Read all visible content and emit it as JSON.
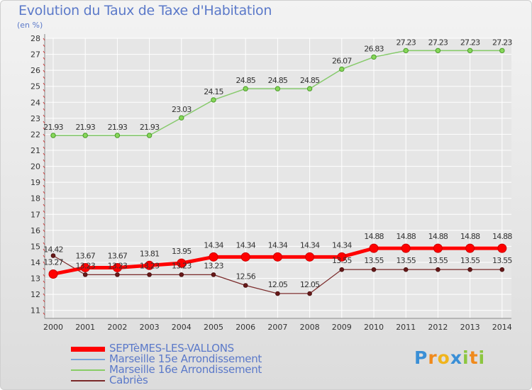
{
  "colors": {
    "title": "#5b79c9",
    "axis": "#888888",
    "grid": "#ffffff",
    "label": "#333333"
  },
  "chart_data": {
    "type": "line",
    "title": "Evolution du Taux de Taxe d'Habitation",
    "subtitle": "(en %)",
    "x": [
      "2000",
      "2001",
      "2002",
      "2003",
      "2004",
      "2005",
      "2006",
      "2007",
      "2008",
      "2009",
      "2010",
      "2011",
      "2012",
      "2013",
      "2014"
    ],
    "ylim": [
      10.5,
      28
    ],
    "yticks": [
      11,
      12,
      13,
      14,
      15,
      16,
      17,
      18,
      19,
      20,
      21,
      22,
      23,
      24,
      25,
      26,
      27,
      28
    ],
    "grid": true,
    "legend_position": "bottom-left",
    "series": [
      {
        "name": "SEPTèMES-LES-VALLONS",
        "color": "#ff0000",
        "values": [
          13.27,
          13.67,
          13.67,
          13.81,
          13.95,
          14.34,
          14.34,
          14.34,
          14.34,
          14.34,
          14.88,
          14.88,
          14.88,
          14.88,
          14.88
        ],
        "labels": [
          "13.27",
          "13.67",
          "13.67",
          "13.81",
          "13.95",
          "14.34",
          "14.34",
          "14.34",
          "14.34",
          "14.34",
          "14.88",
          "14.88",
          "14.88",
          "14.88",
          "14.88"
        ]
      },
      {
        "name": "Marseille 15e  Arrondissement",
        "color": "#7aa6d8",
        "values": [
          21.93,
          21.93,
          21.93,
          21.93,
          23.03,
          24.15,
          24.85,
          24.85,
          24.85,
          26.07,
          26.83,
          27.23,
          27.23,
          27.23,
          27.23
        ],
        "labels": null
      },
      {
        "name": "Marseille 16e  Arrondissement",
        "color": "#88cc66",
        "values": [
          21.93,
          21.93,
          21.93,
          21.93,
          23.03,
          24.15,
          24.85,
          24.85,
          24.85,
          26.07,
          26.83,
          27.23,
          27.23,
          27.23,
          27.23
        ],
        "labels": [
          "21.93",
          "21.93",
          "21.93",
          "21.93",
          "23.03",
          "24.15",
          "24.85",
          "24.85",
          "24.85",
          "26.07",
          "26.83",
          "27.23",
          "27.23",
          "27.23",
          "27.23"
        ]
      },
      {
        "name": "Cabriès",
        "color": "#7a2a2a",
        "values": [
          14.42,
          13.23,
          13.23,
          13.23,
          13.23,
          13.23,
          12.56,
          12.05,
          12.05,
          13.55,
          13.55,
          13.55,
          13.55,
          13.55,
          13.55
        ],
        "labels": [
          "14.42",
          "13.23",
          "13.23",
          "13.23",
          "13.23",
          "13.23",
          "12.56",
          "12.05",
          "12.05",
          "13.55",
          "13.55",
          "13.55",
          "13.55",
          "13.55",
          "13.55"
        ]
      }
    ]
  },
  "logo": {
    "text": "Proxiti",
    "letters": [
      "P",
      "r",
      "o",
      "x",
      "i",
      "t",
      "i"
    ],
    "letter_colors": [
      "#3a8fd6",
      "#f08a1c",
      "#f0b41c",
      "#3a8fd6",
      "#8cc63f",
      "#f08a1c",
      "#8cc63f"
    ]
  }
}
